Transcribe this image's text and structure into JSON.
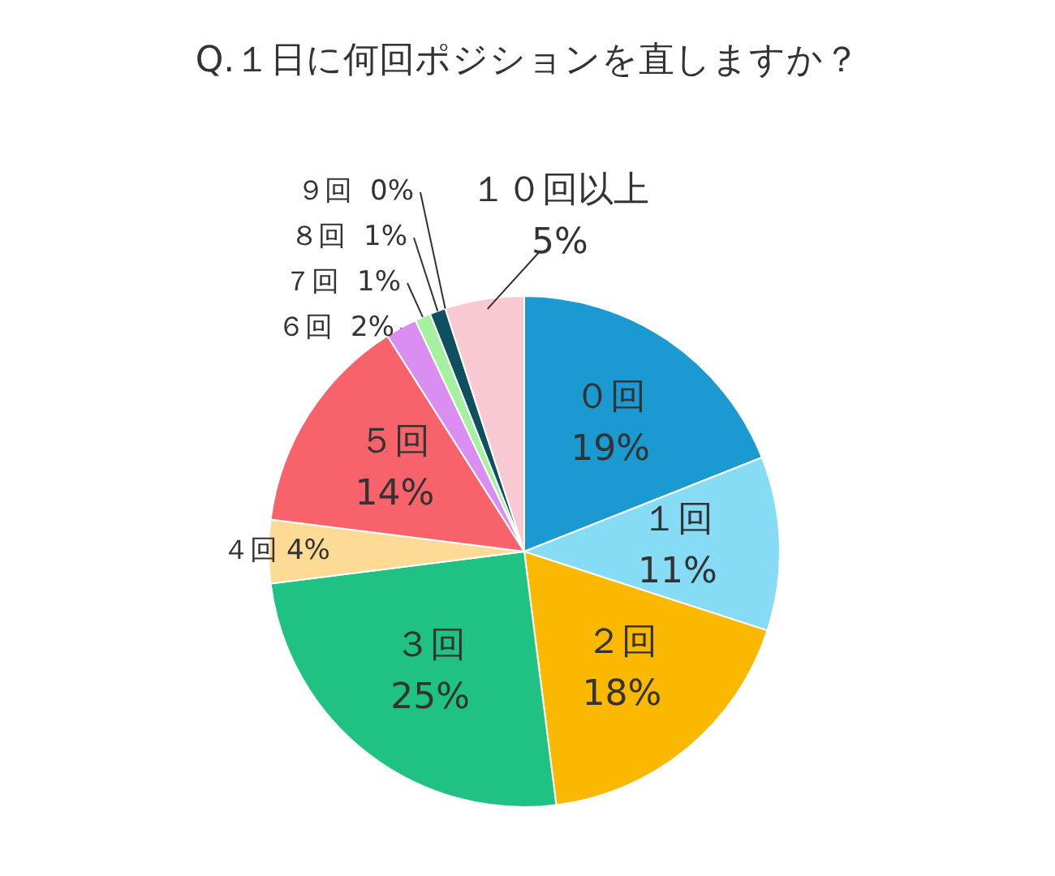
{
  "chart_data": {
    "type": "pie",
    "title": "Q.１日に何回ポジションを直しますか？",
    "categories": [
      "０回",
      "１回",
      "２回",
      "３回",
      "４回",
      "５回",
      "６回",
      "７回",
      "８回",
      "９回",
      "１０回以上"
    ],
    "values": [
      19,
      11,
      18,
      25,
      4,
      14,
      2,
      1,
      1,
      0,
      5
    ],
    "value_labels": [
      "19%",
      "11%",
      "18%",
      "25%",
      "4%",
      "14%",
      "2%",
      "1%",
      "1%",
      "0%",
      "5%"
    ],
    "colors": [
      "#1a9ad0",
      "#86dcf5",
      "#fbb800",
      "#20c283",
      "#fddb94",
      "#f8636b",
      "#da8ef2",
      "#a7f0a0",
      "#0f5060",
      "#1f3d8f",
      "#f8c9d3"
    ],
    "legend": false
  }
}
